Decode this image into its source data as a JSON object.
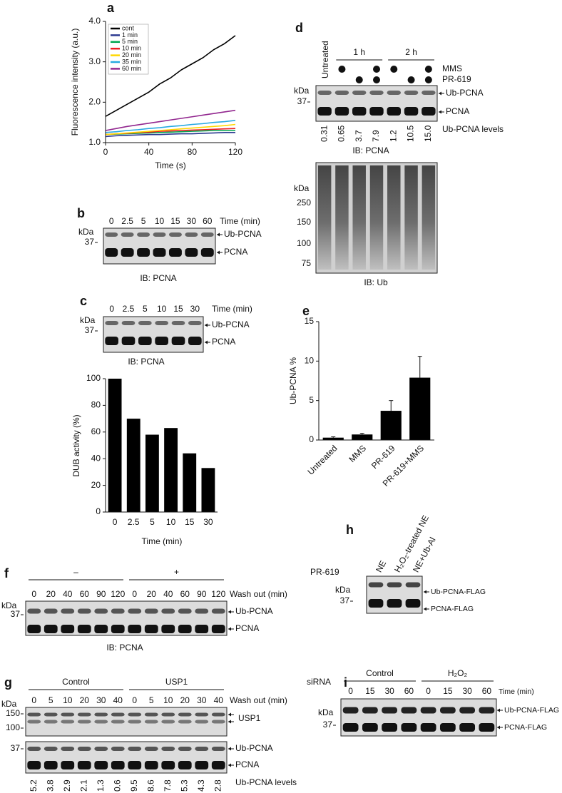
{
  "chart_data": [
    {
      "type": "line",
      "panel": "a",
      "x": [
        0,
        10,
        20,
        30,
        40,
        50,
        60,
        70,
        80,
        90,
        100,
        110,
        120
      ],
      "xlim": [
        0,
        120
      ],
      "xticks": [
        0,
        40,
        80,
        120
      ],
      "ylim": [
        1,
        4
      ],
      "yticks": [
        {
          "value": 1,
          "label": "1.0"
        },
        {
          "value": 2,
          "label": "2.0"
        },
        {
          "value": 3,
          "label": "3.0"
        },
        {
          "value": 4,
          "label": "4.0"
        }
      ],
      "xlabel": "Time (s)",
      "ylabel": "Fluorescence intensity (a.u.)",
      "legend": "upper left",
      "series": [
        {
          "name": "cont",
          "color": "#000000",
          "values": [
            1.65,
            1.8,
            1.95,
            2.1,
            2.25,
            2.45,
            2.6,
            2.8,
            2.95,
            3.1,
            3.3,
            3.45,
            3.65
          ]
        },
        {
          "name": "1 min",
          "color": "#2b3990",
          "values": [
            1.15,
            1.17,
            1.18,
            1.19,
            1.2,
            1.2,
            1.21,
            1.22,
            1.22,
            1.23,
            1.24,
            1.25,
            1.25
          ]
        },
        {
          "name": "5 min",
          "color": "#00a651",
          "values": [
            1.2,
            1.21,
            1.22,
            1.23,
            1.24,
            1.25,
            1.26,
            1.27,
            1.28,
            1.29,
            1.3,
            1.3,
            1.3
          ]
        },
        {
          "name": "10 min",
          "color": "#ed1c24",
          "values": [
            1.2,
            1.22,
            1.23,
            1.25,
            1.26,
            1.28,
            1.29,
            1.3,
            1.31,
            1.32,
            1.33,
            1.34,
            1.35
          ]
        },
        {
          "name": "20 min",
          "color": "#ffd700",
          "values": [
            1.2,
            1.22,
            1.24,
            1.26,
            1.28,
            1.3,
            1.32,
            1.34,
            1.36,
            1.38,
            1.4,
            1.42,
            1.45
          ]
        },
        {
          "name": "35 min",
          "color": "#27aae1",
          "values": [
            1.25,
            1.27,
            1.3,
            1.32,
            1.35,
            1.37,
            1.4,
            1.42,
            1.45,
            1.47,
            1.5,
            1.52,
            1.55
          ]
        },
        {
          "name": "60 min",
          "color": "#92278f",
          "values": [
            1.3,
            1.35,
            1.4,
            1.44,
            1.48,
            1.52,
            1.56,
            1.6,
            1.64,
            1.68,
            1.72,
            1.76,
            1.8
          ]
        }
      ]
    },
    {
      "type": "bar",
      "panel": "c",
      "categories": [
        "0",
        "2.5",
        "5",
        "10",
        "15",
        "30"
      ],
      "values": [
        100,
        70,
        58,
        63,
        44,
        33
      ],
      "color": "#000000",
      "ylim": [
        0,
        100
      ],
      "yticks": [
        0,
        20,
        40,
        60,
        80,
        100
      ],
      "xlabel": "Time (min)",
      "ylabel": "DUB activity (%)"
    },
    {
      "type": "bar",
      "panel": "e",
      "categories": [
        "Untreated",
        "MMS",
        "PR-619",
        "PR-619+MMS"
      ],
      "values": [
        0.3,
        0.7,
        3.7,
        7.9
      ],
      "errors": [
        0.1,
        0.15,
        1.3,
        2.7
      ],
      "color": "#000000",
      "ylim": [
        0,
        15
      ],
      "yticks": [
        0,
        5,
        10,
        15
      ],
      "ylabel": "Ub-PCNA %"
    }
  ],
  "blots": {
    "b": {
      "panel": "b",
      "lanes": [
        "0",
        "2.5",
        "5",
        "10",
        "15",
        "30",
        "60"
      ],
      "lane_title": "Time (min)",
      "kda": "kDa",
      "marker": "37",
      "bands": [
        "Ub-PCNA",
        "PCNA"
      ],
      "antibody": "IB: PCNA"
    },
    "c": {
      "lanes": [
        "0",
        "2.5",
        "5",
        "10",
        "15",
        "30"
      ],
      "lane_title": "Time (min)",
      "kda": "kDa",
      "marker": "37",
      "bands": [
        "Ub-PCNA",
        "PCNA"
      ],
      "antibody": "IB: PCNA"
    },
    "d": {
      "panel": "d",
      "untreated": "Untreated",
      "groups": [
        "1 h",
        "2 h"
      ],
      "treatments": [
        {
          "name": "MMS",
          "present": [
            false,
            true,
            false,
            true,
            true,
            false,
            true
          ]
        },
        {
          "name": "PR-619",
          "present": [
            false,
            false,
            true,
            true,
            false,
            true,
            true
          ]
        }
      ],
      "kda": "kDa",
      "marker": "37",
      "bands": [
        "Ub-PCNA",
        "PCNA"
      ],
      "levels": [
        "0.31",
        "0.65",
        "3.7",
        "7.9",
        "1.2",
        "10.5",
        "15.0"
      ],
      "levels_title": "Ub-PCNA levels",
      "antibody": "IB: PCNA",
      "ub_blot": {
        "kda": "kDa",
        "markers": [
          "250",
          "150",
          "100",
          "75"
        ],
        "antibody": "IB: Ub"
      }
    },
    "f": {
      "panel": "f",
      "groups": [
        "–",
        "+"
      ],
      "group_title": "PR-619",
      "lanes": [
        "0",
        "20",
        "40",
        "60",
        "90",
        "120",
        "0",
        "20",
        "40",
        "60",
        "90",
        "120"
      ],
      "lane_title": "Wash out (min)",
      "kda": "kDa",
      "marker": "37",
      "bands": [
        "Ub-PCNA",
        "PCNA"
      ],
      "antibody": "IB: PCNA"
    },
    "g": {
      "panel": "g",
      "groups": [
        "Control",
        "USP1"
      ],
      "group_title": "siRNA",
      "lanes": [
        "0",
        "5",
        "10",
        "20",
        "30",
        "40",
        "0",
        "5",
        "10",
        "20",
        "30",
        "40"
      ],
      "lane_title": "Wash out (min)",
      "kda": "kDa",
      "usp1_markers": [
        "150",
        "100"
      ],
      "usp1_band": "USP1",
      "marker": "37",
      "bands": [
        "Ub-PCNA",
        "PCNA"
      ],
      "levels": [
        "5.2",
        "3.8",
        "2.9",
        "2.1",
        "1.3",
        "0.6",
        "9.5",
        "8.6",
        "7.8",
        "5.3",
        "4.3",
        "2.8"
      ],
      "levels_title": "Ub-PCNA levels"
    },
    "h": {
      "panel": "h",
      "lanes": [
        "NE",
        "H₂O₂-treated NE",
        "NE+Ub-Al"
      ],
      "kda": "kDa",
      "marker": "37",
      "bands": [
        "Ub-PCNA-FLAG",
        "PCNA-FLAG"
      ]
    },
    "i": {
      "panel": "i",
      "groups": [
        "Control",
        "H₂O₂"
      ],
      "lanes": [
        "0",
        "15",
        "30",
        "60",
        "0",
        "15",
        "30",
        "60"
      ],
      "lane_title": "Time (min)",
      "kda": "kDa",
      "marker": "37",
      "bands": [
        "Ub-PCNA-FLAG",
        "PCNA-FLAG"
      ]
    }
  }
}
